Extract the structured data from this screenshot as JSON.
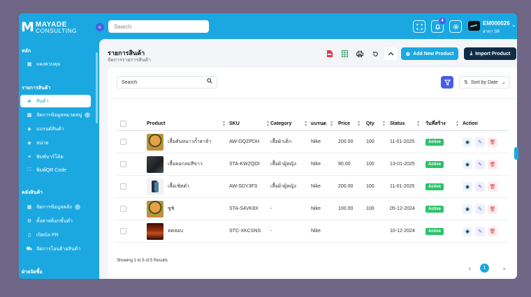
{
  "brand": {
    "line1": "MAYADE",
    "line2": "CONSULTING"
  },
  "header": {
    "search_placeholder": "Search",
    "notification_count": "4",
    "user_id": "EM000026",
    "user_branch": "สาขา SR"
  },
  "sidebar": {
    "sections": [
      {
        "label": "หลัก",
        "items": [
          {
            "label": "แผงควบคุม",
            "icon": "grid-icon"
          }
        ]
      },
      {
        "label": "รายการสินค้า",
        "items": [
          {
            "label": "สินค้า",
            "icon": "box-icon",
            "active": true
          },
          {
            "label": "จัดการข้อมูลหมวดหมู่",
            "icon": "grid-icon"
          },
          {
            "label": "แบรนด์สินค้า",
            "icon": "tag-icon"
          },
          {
            "label": "หน่วย",
            "icon": "unit-icon"
          },
          {
            "label": "พิมพ์บาร์โค้ด",
            "icon": "barcode-icon"
          },
          {
            "label": "พิมพ์QR Code",
            "icon": "qr-icon"
          }
        ]
      },
      {
        "label": "คลังสินค้า",
        "items": [
          {
            "label": "จัดการข้อมูลคลัง",
            "icon": "grid-icon"
          },
          {
            "label": "ตั้งค่าสต็อกขั้นต่ำ",
            "icon": "settings-icon"
          },
          {
            "label": "เปิดบิล PR",
            "icon": "clipboard-icon"
          },
          {
            "label": "จัดการโอนย้ายสินค้า",
            "icon": "truck-icon"
          }
        ]
      },
      {
        "label": "ฝ่ายจัดซื้อ",
        "items": []
      }
    ]
  },
  "page": {
    "title": "รายการสินค้า",
    "subtitle": "จัดการรายการสินค้า",
    "add_label": "Add New Product",
    "import_label": "Import Product"
  },
  "table": {
    "search_placeholder": "Search",
    "sort_label": "Sort by Date",
    "columns": [
      "Product",
      "SKU",
      "Category",
      "แบรนด",
      "Price",
      "Qty",
      "Status",
      "วันที่สร้าง",
      "Action"
    ],
    "rows": [
      {
        "image": "burger",
        "name": "เสื้อคันหนาวก้ำฮาล้า",
        "sku": "AW-OQZPDH",
        "category": "เสื้อผ้าเด็ก",
        "brand": "Nike",
        "price": "200.00",
        "qty": "100",
        "date": "11-01-2025",
        "status": "Active"
      },
      {
        "image": "dark",
        "name": "เสื้อคอกลมสีขาว",
        "sku": "STA-KWZQOI",
        "category": "เสื้อผ้าผู้หญิง",
        "brand": "Nike",
        "price": "90.00",
        "qty": "100",
        "date": "13-01-2025",
        "status": "Active"
      },
      {
        "image": "phone",
        "name": "เสื้อเชิตดำ",
        "sku": "AW-SDY3FS",
        "category": "เสื้อผ้าผู้หญิง",
        "brand": "Nike",
        "price": "200.00",
        "qty": "100",
        "date": "11-01-2025",
        "status": "Active"
      },
      {
        "image": "burger",
        "name": "ซูชิ",
        "sku": "STA-S4VK8X",
        "category": "-",
        "brand": "Nike",
        "price": "100.00",
        "qty": "100",
        "date": "05-12-2024",
        "status": "Active"
      },
      {
        "image": "grill",
        "name": "ทดสอบ",
        "sku": "STC-XKCSNS",
        "category": "-",
        "brand": "Nike",
        "price": "",
        "qty": "",
        "date": "10-12-2024",
        "status": "Active"
      }
    ],
    "showing": "Showing 1 to 5 of 5 Results",
    "current_page": "1"
  },
  "colors": {
    "primary": "#1ba8e0",
    "dark": "#0f2d46",
    "accent": "#4a5de8",
    "active": "#2ec26b",
    "danger": "#e8394d"
  }
}
